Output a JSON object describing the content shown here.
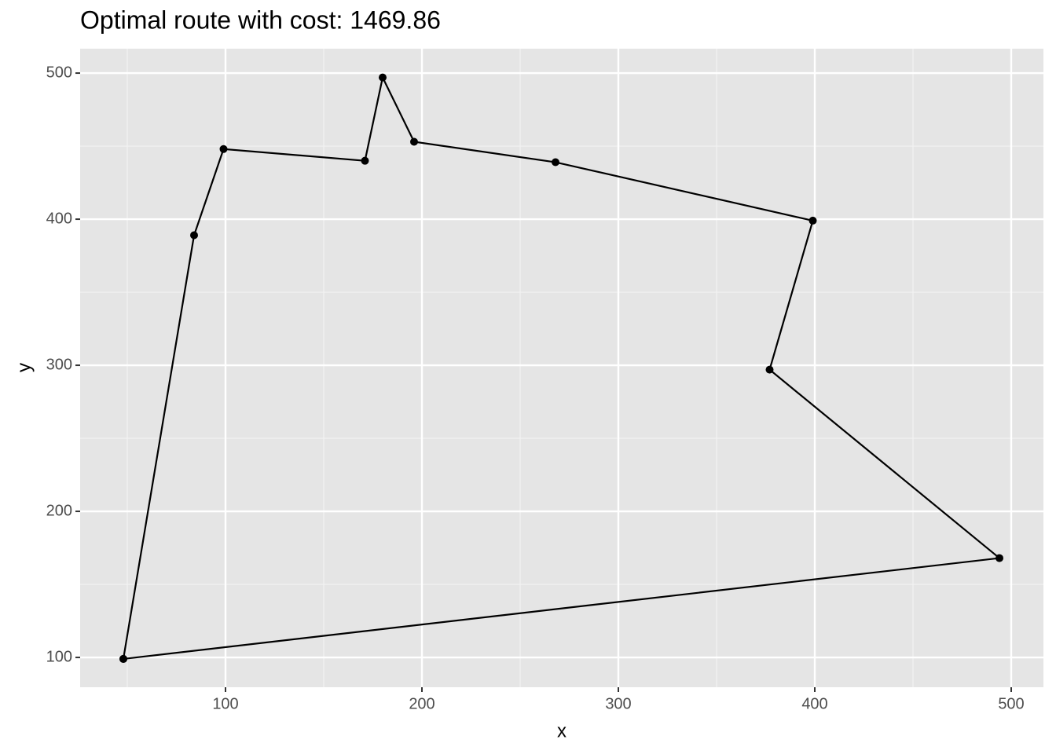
{
  "chart_data": {
    "type": "line",
    "title": "Optimal route with cost: 1469.86",
    "x_label": "x",
    "y_label": "y",
    "x": [
      48,
      84,
      99,
      171,
      180,
      196,
      268,
      399,
      377,
      494,
      48
    ],
    "values": [
      99,
      389,
      448,
      440,
      497,
      453,
      439,
      399,
      297,
      168,
      99
    ],
    "color": "#000000",
    "markers": true,
    "xlim": [
      26,
      516.4
    ],
    "ylim": [
      79.6,
      516.7
    ],
    "xticks": [
      100,
      200,
      300,
      400,
      500
    ],
    "yticks": [
      100,
      200,
      300,
      400,
      500
    ],
    "grid": true
  }
}
